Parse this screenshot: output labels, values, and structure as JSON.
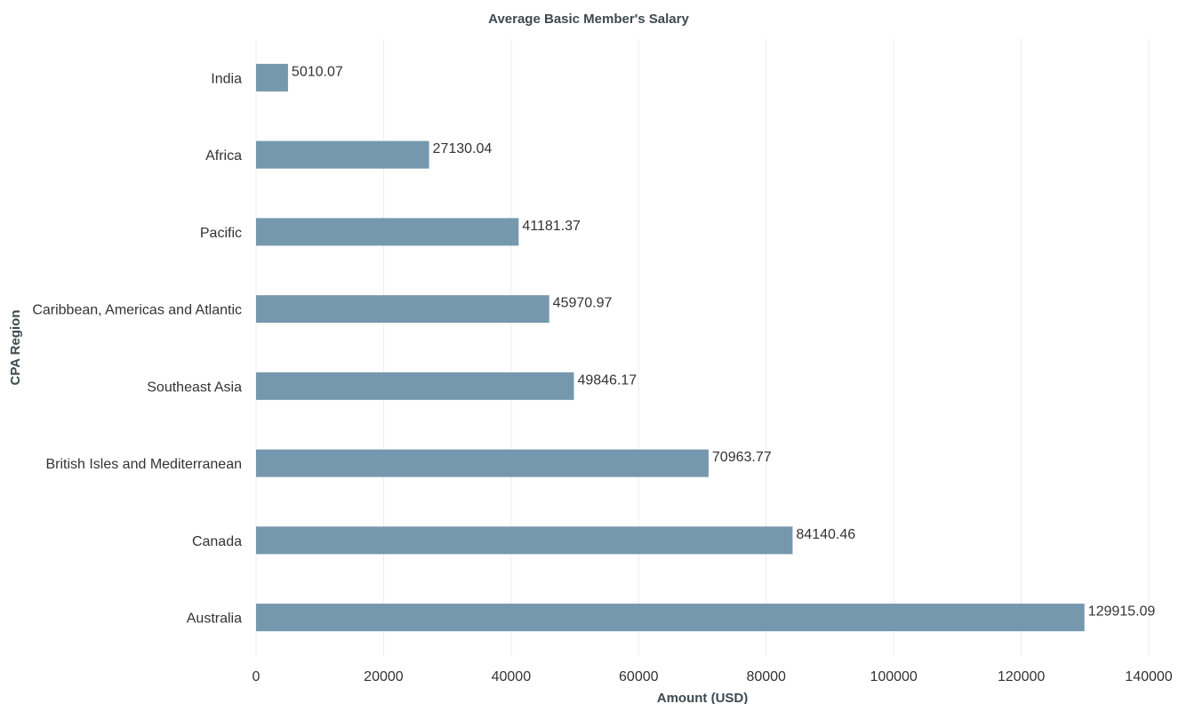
{
  "chart_data": {
    "type": "bar",
    "orientation": "horizontal",
    "title": "Average Basic Member's Salary",
    "xlabel": "Amount (USD)",
    "ylabel": "CPA Region",
    "categories": [
      "India",
      "Africa",
      "Pacific",
      "Caribbean, Americas and Atlantic",
      "Southeast Asia",
      "British Isles and Mediterranean",
      "Canada",
      "Australia"
    ],
    "values": [
      5010.07,
      27130.04,
      41181.37,
      45970.97,
      49846.17,
      70963.77,
      84140.46,
      129915.09
    ],
    "data_labels": [
      "5010.07",
      "27130.04",
      "41181.37",
      "45970.97",
      "49846.17",
      "70963.77",
      "84140.46",
      "129915.09"
    ],
    "xlim": [
      0,
      140000
    ],
    "xticks": [
      0,
      20000,
      40000,
      60000,
      80000,
      100000,
      120000,
      140000
    ],
    "xtick_labels": [
      "0",
      "20000",
      "40000",
      "60000",
      "80000",
      "100000",
      "120000",
      "140000"
    ],
    "grid": true,
    "legend": "none",
    "bar_color": "#7598ae",
    "gridline_color": "#ececec"
  }
}
